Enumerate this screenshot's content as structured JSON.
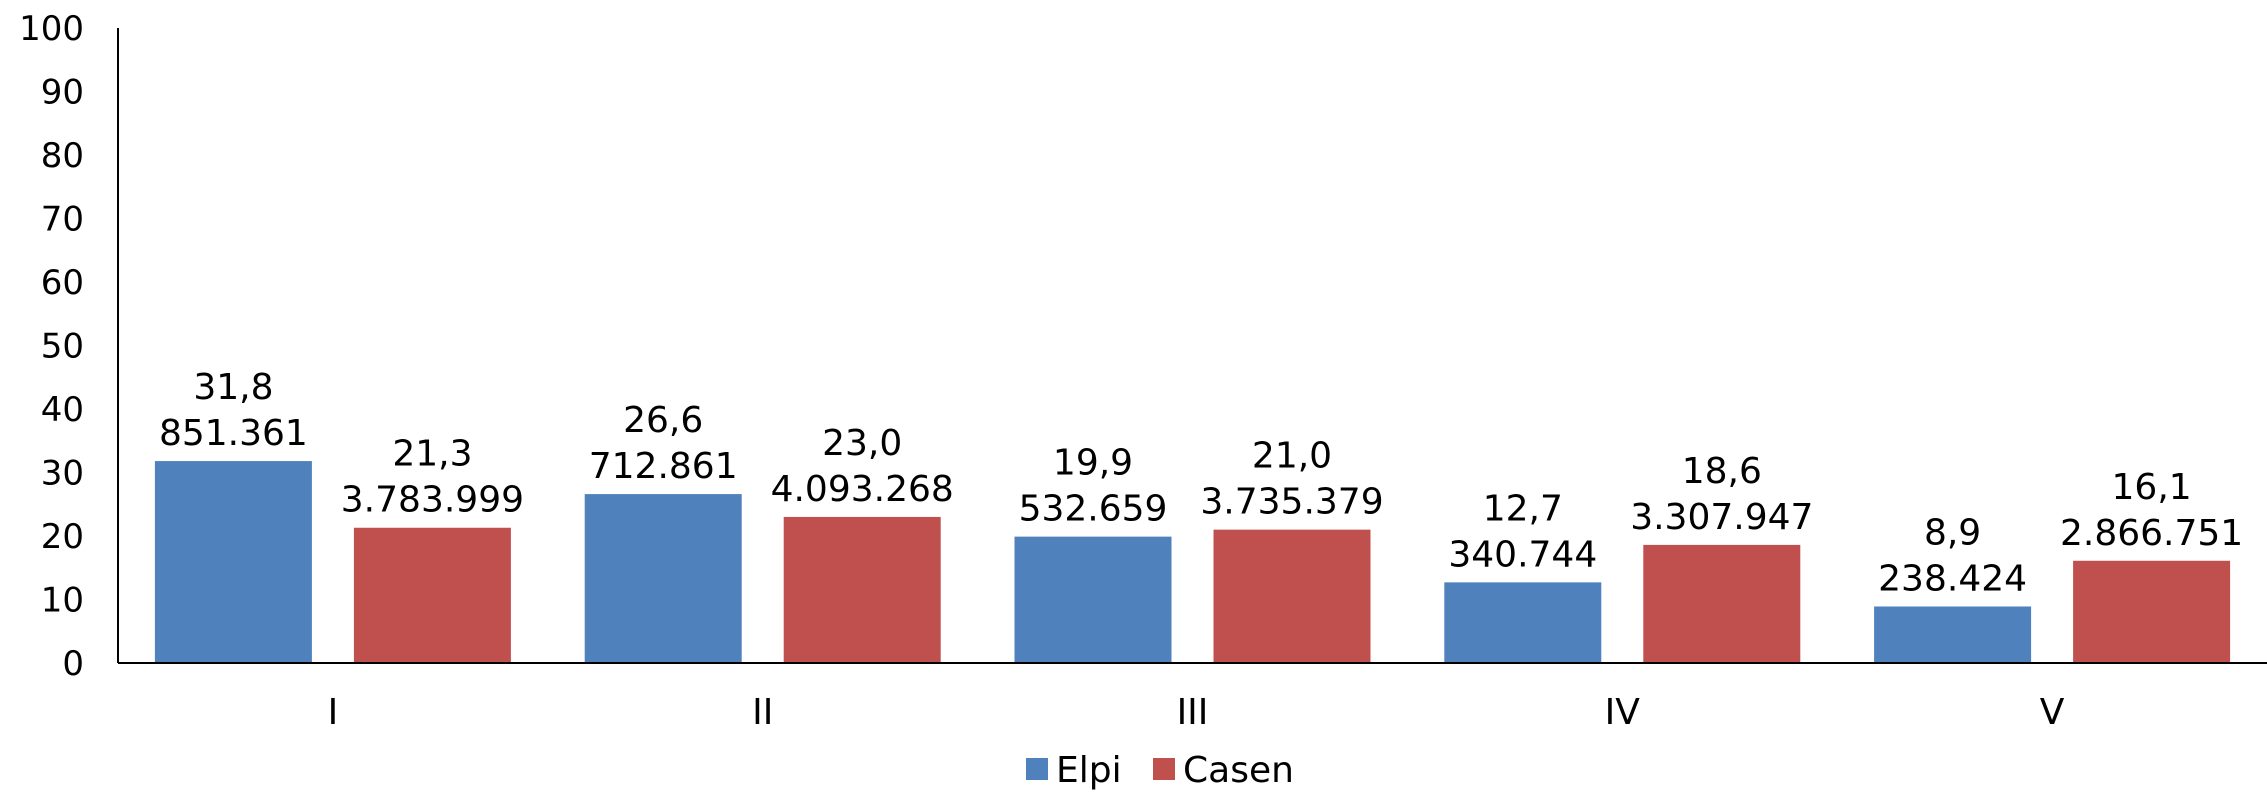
{
  "chart_data": {
    "type": "bar",
    "categories": [
      "I",
      "II",
      "III",
      "IV",
      "V"
    ],
    "series": [
      {
        "name": "Elpi",
        "color": "#4f81bd",
        "values": [
          31.8,
          26.6,
          19.9,
          12.7,
          8.9
        ],
        "value_labels": [
          "31,8",
          "26,6",
          "19,9",
          "12,7",
          "8,9"
        ],
        "count_labels": [
          "851.361",
          "712.861",
          "532.659",
          "340.744",
          "238.424"
        ]
      },
      {
        "name": "Casen",
        "color": "#c0504d",
        "values": [
          21.3,
          23.0,
          21.0,
          18.6,
          16.1
        ],
        "value_labels": [
          "21,3",
          "23,0",
          "21,0",
          "18,6",
          "16,1"
        ],
        "count_labels": [
          "3.783.999",
          "4.093.268",
          "3.735.379",
          "3.307.947",
          "2.866.751"
        ]
      }
    ],
    "y_ticks": [
      "0",
      "10",
      "20",
      "30",
      "40",
      "50",
      "60",
      "70",
      "80",
      "90",
      "100"
    ],
    "ylim": [
      0,
      100
    ],
    "grid": false,
    "legend": "bottom-center"
  }
}
